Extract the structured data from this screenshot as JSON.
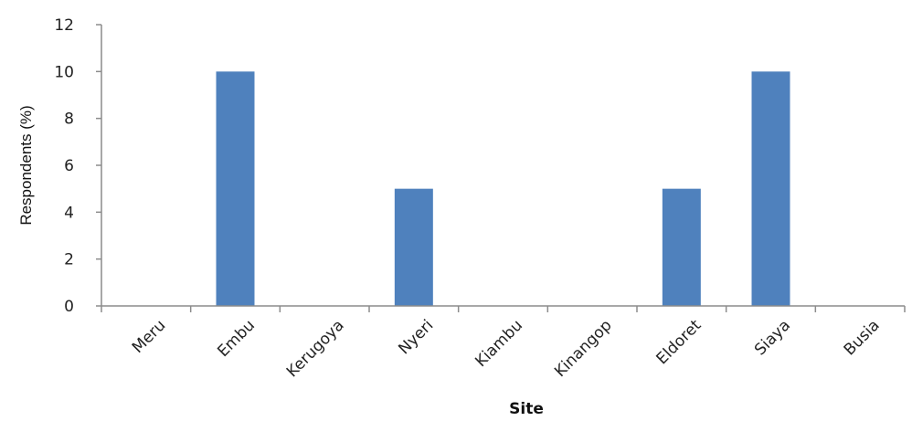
{
  "chart_data": {
    "type": "bar",
    "categories": [
      "Meru",
      "Embu",
      "Kerugoya",
      "Nyeri",
      "Kiambu",
      "Kinangop",
      "Eldoret",
      "Siaya",
      "Busia"
    ],
    "values": [
      0,
      10,
      0,
      5,
      0,
      0,
      5,
      10,
      0
    ],
    "title": "",
    "xlabel": "Site",
    "ylabel": "Respondents (%)",
    "ylim": [
      0,
      12
    ],
    "yticks": [
      0,
      2,
      4,
      6,
      8,
      10,
      12
    ],
    "grid": false,
    "legend": "none",
    "bar_color": "#4F81BD",
    "axis_color": "#8C8C8C"
  }
}
